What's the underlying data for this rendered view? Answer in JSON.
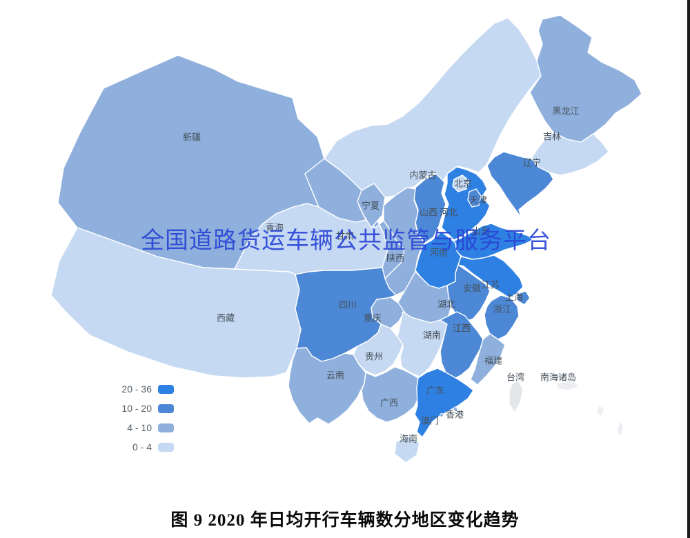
{
  "figure": {
    "watermark": "全国道路货运车辆公共监管与服务平台",
    "caption": "图 9 2020 年日均开行车辆数分地区变化趋势"
  },
  "legend": {
    "items": [
      {
        "range": "20 - 36",
        "level": "l4",
        "color": "#2f80e3"
      },
      {
        "range": "10 - 20",
        "level": "l3",
        "color": "#4d88d6"
      },
      {
        "range": "4 - 10",
        "level": "l2",
        "color": "#8fb0dd"
      },
      {
        "range": "0 - 4",
        "level": "l1",
        "color": "#c6d9f2"
      }
    ]
  },
  "map": {
    "palette": {
      "l4": "#2f80e3",
      "l3": "#4d88d6",
      "l2": "#8fb0dd",
      "l1": "#c6d9f2",
      "none": "#e4e6ea",
      "islands": "#eceef1"
    },
    "border_color": "#ffffff",
    "label_color": "#45505a",
    "provinces": [
      {
        "id": "xinjiang",
        "name": "新疆",
        "level": "l2",
        "label": [
          278,
          200
        ]
      },
      {
        "id": "xizang",
        "name": "西藏",
        "level": "l1",
        "label": [
          327,
          462
        ]
      },
      {
        "id": "qinghai",
        "name": "青海",
        "level": "l1",
        "label": [
          398,
          331
        ]
      },
      {
        "id": "gansu",
        "name": "甘肃",
        "level": "l2",
        "label": [
          500,
          343
        ]
      },
      {
        "id": "ningxia",
        "name": "宁夏",
        "level": "l2",
        "label": [
          537,
          299
        ]
      },
      {
        "id": "neimenggu",
        "name": "内蒙古",
        "level": "l1",
        "label": [
          613,
          255
        ]
      },
      {
        "id": "heilongjiang",
        "name": "黑龙江",
        "level": "l2",
        "label": [
          820,
          162
        ]
      },
      {
        "id": "jilin",
        "name": "吉林",
        "level": "l1",
        "label": [
          800,
          199
        ]
      },
      {
        "id": "liaoning",
        "name": "辽宁",
        "level": "l3",
        "label": [
          771,
          237
        ]
      },
      {
        "id": "beijing",
        "name": "北京",
        "level": "l1",
        "label": [
          671,
          267
        ]
      },
      {
        "id": "tianjin",
        "name": "天津",
        "level": "l3",
        "label": [
          693,
          291
        ]
      },
      {
        "id": "shanxi",
        "name": "山西",
        "level": "l3",
        "label": [
          621,
          309
        ]
      },
      {
        "id": "hebei",
        "name": "河北",
        "level": "l4",
        "label": [
          650,
          309
        ]
      },
      {
        "id": "shandong",
        "name": "山东",
        "level": "l4",
        "label": [
          697,
          336
        ]
      },
      {
        "id": "henan",
        "name": "河南",
        "level": "l4",
        "label": [
          636,
          367
        ]
      },
      {
        "id": "shaanxi",
        "name": "陕西",
        "level": "l2",
        "label": [
          573,
          375
        ]
      },
      {
        "id": "jiangsu",
        "name": "江苏",
        "level": "l4",
        "label": [
          711,
          414
        ]
      },
      {
        "id": "anhui",
        "name": "安徽",
        "level": "l3",
        "label": [
          684,
          419
        ]
      },
      {
        "id": "shanghai",
        "name": "上海",
        "level": "l3",
        "label": [
          745,
          432
        ]
      },
      {
        "id": "zhejiang",
        "name": "浙江",
        "level": "l3",
        "label": [
          728,
          449
        ]
      },
      {
        "id": "hubei",
        "name": "湖北",
        "level": "l2",
        "label": [
          647,
          442
        ]
      },
      {
        "id": "chongqing",
        "name": "重庆",
        "level": "l2",
        "label": [
          540,
          462
        ]
      },
      {
        "id": "sichuan",
        "name": "四川",
        "level": "l3",
        "label": [
          504,
          443
        ]
      },
      {
        "id": "hunan",
        "name": "湖南",
        "level": "l1",
        "label": [
          626,
          487
        ]
      },
      {
        "id": "jiangxi",
        "name": "江西",
        "level": "l3",
        "label": [
          669,
          477
        ]
      },
      {
        "id": "guizhou",
        "name": "贵州",
        "level": "l1",
        "label": [
          542,
          518
        ]
      },
      {
        "id": "fujian",
        "name": "福建",
        "level": "l2",
        "label": [
          715,
          524
        ]
      },
      {
        "id": "yunnan",
        "name": "云南",
        "level": "l2",
        "label": [
          486,
          545
        ]
      },
      {
        "id": "guangxi",
        "name": "广西",
        "level": "l2",
        "label": [
          564,
          585
        ]
      },
      {
        "id": "guangdong",
        "name": "广东",
        "level": "l4",
        "label": [
          631,
          567
        ]
      },
      {
        "id": "aomen",
        "name": "澳门",
        "level": "none",
        "label": [
          623,
          611
        ]
      },
      {
        "id": "xianggang",
        "name": "香港",
        "level": "none",
        "label": [
          659,
          602
        ]
      },
      {
        "id": "hainan",
        "name": "海南",
        "level": "l1",
        "label": [
          592,
          637
        ]
      },
      {
        "id": "taiwan",
        "name": "台湾",
        "level": "none",
        "label": [
          747,
          548
        ]
      },
      {
        "id": "nanhai",
        "name": "南海诸岛",
        "level": "islands",
        "label": [
          809,
          548
        ]
      }
    ]
  }
}
